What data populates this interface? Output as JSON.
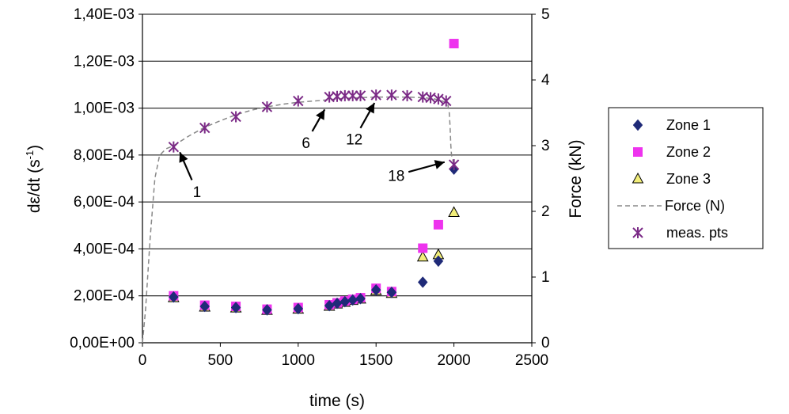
{
  "chart_data": {
    "type": "scatter",
    "title": "",
    "xlabel": "time (s)",
    "ylabel": "dε/dt (s⁻¹)",
    "ylabel_base": "dε/dt (s",
    "ylabel_exp": "-1",
    "ylabel_close": ")",
    "y2label": "Force (kN)",
    "xlim": [
      0,
      2500
    ],
    "ylim": [
      0,
      0.0014
    ],
    "y2lim": [
      0,
      5
    ],
    "x_ticks": [
      "0",
      "500",
      "1000",
      "1500",
      "2000",
      "2500"
    ],
    "y_ticks": [
      "0,00E+00",
      "2,00E-04",
      "4,00E-04",
      "6,00E-04",
      "8,00E-04",
      "1,00E-03",
      "1,20E-03",
      "1,40E-03"
    ],
    "y2_ticks": [
      "0",
      "1",
      "2",
      "3",
      "4",
      "5"
    ],
    "grid": "horizontal",
    "legend_position": "right",
    "series": [
      {
        "name": "Zone 1",
        "marker": "diamond",
        "color": "#1f2a78",
        "axis": "left",
        "x": [
          200,
          400,
          600,
          800,
          1000,
          1200,
          1250,
          1300,
          1350,
          1400,
          1500,
          1600,
          1800,
          1900,
          2000
        ],
        "y": [
          0.000195,
          0.000155,
          0.00015,
          0.00014,
          0.000145,
          0.000158,
          0.000168,
          0.000175,
          0.000182,
          0.000188,
          0.000225,
          0.000215,
          0.000258,
          0.000348,
          0.00074
        ]
      },
      {
        "name": "Zone 2",
        "marker": "square",
        "color": "#ee33ee",
        "axis": "left",
        "x": [
          200,
          400,
          600,
          800,
          1000,
          1200,
          1250,
          1300,
          1350,
          1400,
          1500,
          1600,
          1800,
          1900,
          2000
        ],
        "y": [
          0.0002,
          0.00016,
          0.000155,
          0.000143,
          0.00015,
          0.000162,
          0.00017,
          0.000178,
          0.000185,
          0.000192,
          0.000232,
          0.000218,
          0.000403,
          0.000503,
          0.001275
        ]
      },
      {
        "name": "Zone 3",
        "marker": "triangle",
        "color": "#f2ee7a",
        "axis": "left",
        "x": [
          200,
          400,
          600,
          800,
          1000,
          1200,
          1250,
          1300,
          1350,
          1400,
          1500,
          1600,
          1800,
          1900,
          2000
        ],
        "y": [
          0.000192,
          0.000152,
          0.000148,
          0.000138,
          0.000143,
          0.000155,
          0.000165,
          0.000172,
          0.00018,
          0.000186,
          0.000222,
          0.00021,
          0.000365,
          0.000375,
          0.000555
        ]
      },
      {
        "name": "Force (N)",
        "marker": "dashed-line",
        "color": "#888888",
        "axis": "right",
        "x": [
          0,
          20,
          50,
          80,
          110,
          150,
          200,
          300,
          400,
          500,
          600,
          700,
          800,
          900,
          1000,
          1100,
          1200,
          1300,
          1400,
          1500,
          1600,
          1700,
          1800,
          1850,
          1900,
          1950,
          1960,
          1970,
          1975,
          1980,
          1985,
          2000
        ],
        "y": [
          0,
          0.5,
          1.6,
          2.5,
          2.85,
          2.95,
          3.0,
          3.15,
          3.28,
          3.38,
          3.47,
          3.54,
          3.59,
          3.63,
          3.66,
          3.68,
          3.7,
          3.72,
          3.73,
          3.74,
          3.74,
          3.74,
          3.73,
          3.72,
          3.7,
          3.66,
          3.64,
          3.5,
          3.3,
          3.0,
          2.85,
          2.72
        ]
      },
      {
        "name": "meas. pts",
        "marker": "asterisk",
        "color": "#7b2a86",
        "axis": "right",
        "x": [
          200,
          400,
          600,
          800,
          1000,
          1200,
          1250,
          1300,
          1350,
          1400,
          1500,
          1600,
          1700,
          1800,
          1850,
          1900,
          1950,
          2000
        ],
        "y": [
          2.98,
          3.27,
          3.44,
          3.59,
          3.68,
          3.74,
          3.75,
          3.76,
          3.76,
          3.76,
          3.77,
          3.77,
          3.76,
          3.74,
          3.73,
          3.71,
          3.68,
          2.71
        ]
      }
    ],
    "annotations": [
      {
        "text": "1",
        "label_x": 350,
        "label_y": 2.3,
        "arrow_to_x": 240,
        "arrow_to_y": 2.9
      },
      {
        "text": "6",
        "label_x": 1050,
        "label_y": 3.05,
        "arrow_to_x": 1170,
        "arrow_to_y": 3.55
      },
      {
        "text": "12",
        "label_x": 1360,
        "label_y": 3.1,
        "arrow_to_x": 1490,
        "arrow_to_y": 3.65
      },
      {
        "text": "18",
        "label_x": 1630,
        "label_y": 2.55,
        "arrow_to_x": 1940,
        "arrow_to_y": 2.75
      }
    ]
  }
}
